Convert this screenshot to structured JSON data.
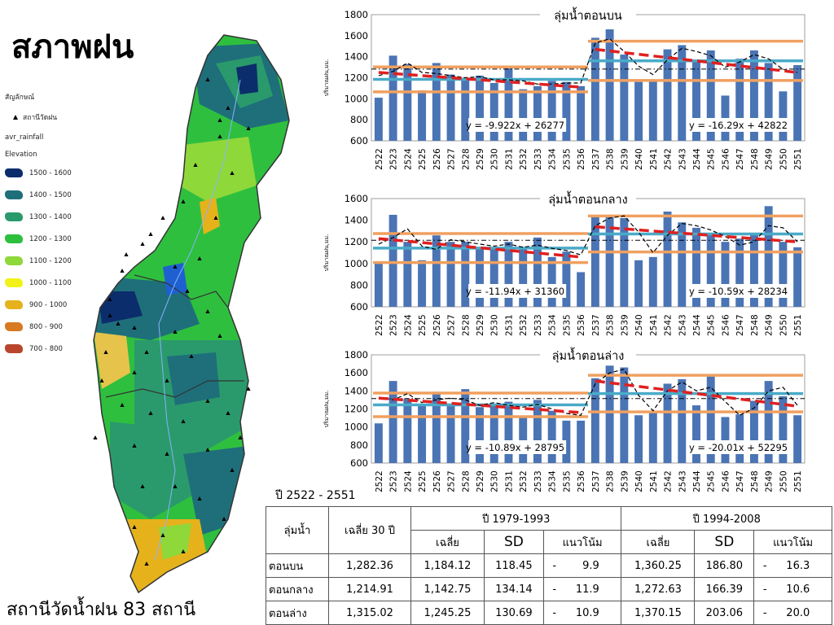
{
  "page": {
    "title": "สภาพฝน",
    "footer": "สถานีวัดน้ำฝน 83 สถานี",
    "period_label": "ปี 2522 - 2551"
  },
  "legend": {
    "header": "สัญลักษณ์",
    "station_label": "สถานีวัดฝน",
    "layer_label": "avr_rainfall",
    "elevation_label": "Elevation",
    "items": [
      {
        "label": "1500 - 1600",
        "color": "#0c2d6b"
      },
      {
        "label": "1400 - 1500",
        "color": "#1e6f7a"
      },
      {
        "label": "1300 - 1400",
        "color": "#2a9a6c"
      },
      {
        "label": "1200 - 1300",
        "color": "#2fbf3f"
      },
      {
        "label": "1100 - 1200",
        "color": "#8fd83a"
      },
      {
        "label": "1000 - 1100",
        "color": "#f2f21a"
      },
      {
        "label": "900 - 1000",
        "color": "#e6b21c"
      },
      {
        "label": "800 - 900",
        "color": "#d77a22"
      },
      {
        "label": "700 - 800",
        "color": "#b8452c"
      }
    ]
  },
  "chart_data": [
    {
      "type": "bar",
      "title": "ลุ่มน้ำตอนบน",
      "ylabel": "ปริมาณฝน,มม.",
      "ylim": [
        600,
        1800
      ],
      "yticks": [
        600,
        800,
        1000,
        1200,
        1400,
        1600,
        1800
      ],
      "categories": [
        "2522",
        "2523",
        "2524",
        "2525",
        "2526",
        "2527",
        "2528",
        "2529",
        "2530",
        "2531",
        "2532",
        "2533",
        "2534",
        "2535",
        "2536",
        "2537",
        "2538",
        "2539",
        "2540",
        "2541",
        "2542",
        "2543",
        "2544",
        "2545",
        "2546",
        "2547",
        "2548",
        "2549",
        "2550",
        "2551"
      ],
      "values": [
        1010,
        1410,
        1330,
        1080,
        1340,
        1230,
        1200,
        1220,
        1150,
        1300,
        1090,
        1120,
        1170,
        1160,
        1120,
        1580,
        1660,
        1420,
        1160,
        1180,
        1470,
        1510,
        1370,
        1460,
        1030,
        1380,
        1460,
        1340,
        1070,
        1320
      ],
      "moving_avg": [
        1220,
        1260,
        1340,
        1250,
        1240,
        1220,
        1200,
        1210,
        1180,
        1180,
        1170,
        1140,
        1140,
        1150,
        1150,
        1530,
        1570,
        1450,
        1310,
        1230,
        1370,
        1480,
        1450,
        1410,
        1300,
        1350,
        1420,
        1380,
        1280,
        1250
      ],
      "mean_30yr": 1282.36,
      "period_1": {
        "start": "2522",
        "end": "2536",
        "mean": 1184.12,
        "upper": 1302.57,
        "lower": 1065.67
      },
      "period_2": {
        "start": "2537",
        "end": "2551",
        "mean": 1360.25,
        "upper": 1547.05,
        "lower": 1173.45
      },
      "trend_1": {
        "label": "y = -9.922x + 26277",
        "start": 1250,
        "end": 1110
      },
      "trend_2": {
        "label": "y = -16.29x + 42822",
        "start": 1470,
        "end": 1250
      }
    },
    {
      "type": "bar",
      "title": "ลุ่มน้ำตอนกลาง",
      "ylabel": "ปริมาณฝน,มม.",
      "ylim": [
        600,
        1600
      ],
      "yticks": [
        600,
        800,
        1000,
        1200,
        1400,
        1600
      ],
      "categories": [
        "2522",
        "2523",
        "2524",
        "2525",
        "2526",
        "2527",
        "2528",
        "2529",
        "2530",
        "2531",
        "2532",
        "2533",
        "2534",
        "2535",
        "2536",
        "2537",
        "2538",
        "2539",
        "2540",
        "2541",
        "2542",
        "2543",
        "2544",
        "2545",
        "2546",
        "2547",
        "2548",
        "2549",
        "2550",
        "2551"
      ],
      "values": [
        1000,
        1450,
        1200,
        1030,
        1260,
        1200,
        1200,
        1150,
        1150,
        1200,
        1130,
        1240,
        1060,
        1110,
        920,
        1430,
        1430,
        1420,
        1030,
        1060,
        1480,
        1380,
        1330,
        1280,
        1200,
        1230,
        1280,
        1530,
        1200,
        1150
      ],
      "moving_avg": [
        1180,
        1240,
        1320,
        1160,
        1130,
        1220,
        1200,
        1180,
        1160,
        1180,
        1150,
        1170,
        1140,
        1120,
        1080,
        1350,
        1420,
        1440,
        1290,
        1100,
        1260,
        1370,
        1350,
        1310,
        1250,
        1170,
        1200,
        1350,
        1330,
        1200
      ],
      "mean_30yr": 1214.91,
      "period_1": {
        "start": "2522",
        "end": "2536",
        "mean": 1142.75,
        "upper": 1276.89,
        "lower": 1008.61
      },
      "period_2": {
        "start": "2537",
        "end": "2551",
        "mean": 1272.63,
        "upper": 1439.02,
        "lower": 1106.24
      },
      "trend_1": {
        "label": "y = -11.94x + 31360",
        "start": 1230,
        "end": 1060
      },
      "trend_2": {
        "label": "y = -10.59x + 28234",
        "start": 1340,
        "end": 1200
      }
    },
    {
      "type": "bar",
      "title": "ลุ่มน้ำตอนล่าง",
      "ylabel": "ปริมาณฝน,มม.",
      "ylim": [
        600,
        1800
      ],
      "yticks": [
        600,
        800,
        1000,
        1200,
        1400,
        1600,
        1800
      ],
      "categories": [
        "2522",
        "2523",
        "2524",
        "2525",
        "2526",
        "2527",
        "2528",
        "2529",
        "2530",
        "2531",
        "2532",
        "2533",
        "2534",
        "2535",
        "2536",
        "2537",
        "2538",
        "2539",
        "2540",
        "2541",
        "2542",
        "2543",
        "2544",
        "2545",
        "2546",
        "2547",
        "2548",
        "2549",
        "2550",
        "2551"
      ],
      "values": [
        1040,
        1510,
        1310,
        1250,
        1390,
        1260,
        1420,
        1220,
        1240,
        1280,
        1110,
        1300,
        1180,
        1070,
        1070,
        1540,
        1680,
        1660,
        1130,
        1160,
        1480,
        1530,
        1240,
        1560,
        1110,
        1140,
        1290,
        1510,
        1340,
        1130
      ],
      "moving_avg": [
        1330,
        1300,
        1370,
        1270,
        1300,
        1320,
        1300,
        1240,
        1270,
        1240,
        1220,
        1250,
        1200,
        1150,
        1130,
        1480,
        1600,
        1640,
        1350,
        1180,
        1400,
        1500,
        1400,
        1440,
        1280,
        1130,
        1210,
        1400,
        1440,
        1240
      ],
      "mean_30yr": 1315.02,
      "period_1": {
        "start": "2522",
        "end": "2536",
        "mean": 1245.25,
        "upper": 1375.94,
        "lower": 1114.56
      },
      "period_2": {
        "start": "2537",
        "end": "2551",
        "mean": 1370.15,
        "upper": 1573.21,
        "lower": 1167.09
      },
      "trend_1": {
        "label": "y = -10.89x + 28795",
        "start": 1320,
        "end": 1160
      },
      "trend_2": {
        "label": "y = -20.01x + 52295",
        "start": 1510,
        "end": 1230
      }
    }
  ],
  "table": {
    "header_basin": "ลุ่มน้ำ",
    "header_mean30": "เฉลี่ย 30 ปี",
    "period_1": "ปี 1979-1993",
    "period_2": "ปี 1994-2008",
    "col_mean": "เฉลี่ย",
    "col_sd": "SD",
    "col_trend": "แนวโน้ม",
    "rows": [
      {
        "basin": "ตอนบน",
        "mean30": "1,282.36",
        "p1_mean": "1,184.12",
        "p1_sd": "118.45",
        "p1_sign": "-",
        "p1_trend": "9.9",
        "p2_mean": "1,360.25",
        "p2_sd": "186.80",
        "p2_sign": "-",
        "p2_trend": "16.3"
      },
      {
        "basin": "ตอนกลาง",
        "mean30": "1,214.91",
        "p1_mean": "1,142.75",
        "p1_sd": "134.14",
        "p1_sign": "-",
        "p1_trend": "11.9",
        "p2_mean": "1,272.63",
        "p2_sd": "166.39",
        "p2_sign": "-",
        "p2_trend": "10.6"
      },
      {
        "basin": "ตอนล่าง",
        "mean30": "1,315.02",
        "p1_mean": "1,245.25",
        "p1_sd": "130.69",
        "p1_sign": "-",
        "p1_trend": "10.9",
        "p2_mean": "1,370.15",
        "p2_sd": "203.06",
        "p2_sign": "-",
        "p2_trend": "20.0"
      }
    ]
  },
  "colors": {
    "bar": "#4a74b4",
    "band": "#f0a060",
    "mean": "#4aaac8",
    "trend": "#e02020",
    "moving_avg": "#000000",
    "map_outline": "#333333",
    "river": "#8ab0ff"
  }
}
